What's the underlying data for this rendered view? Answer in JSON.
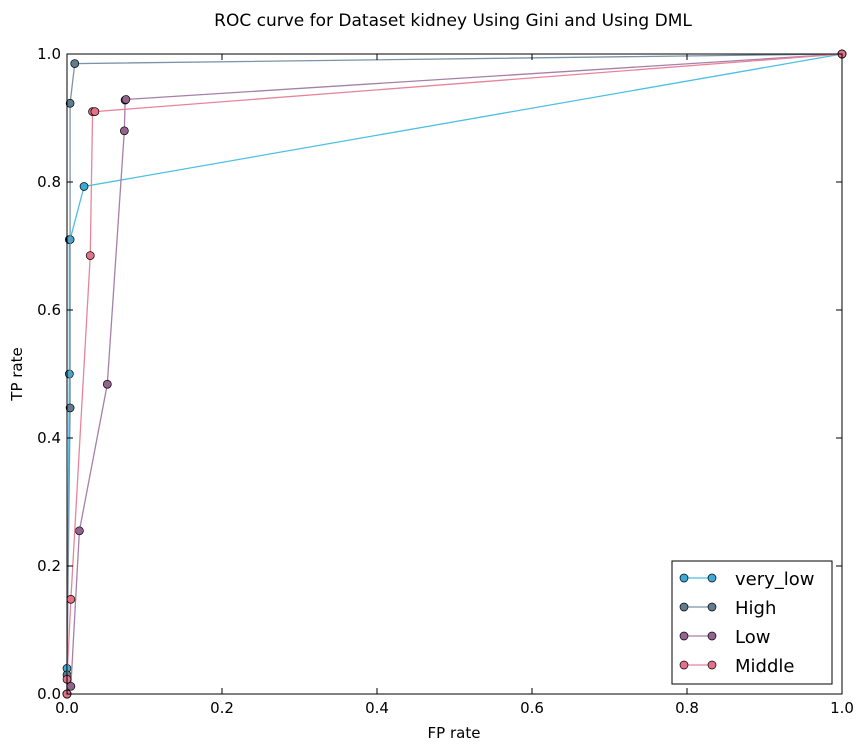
{
  "chart_data": {
    "type": "line",
    "title": "ROC curve for Dataset kidney Using Gini and Using DML",
    "xlabel": "FP rate",
    "ylabel": "TP rate",
    "xlim": [
      0.0,
      1.0
    ],
    "ylim": [
      0.0,
      1.0
    ],
    "xticks": [
      "0.0",
      "0.2",
      "0.4",
      "0.6",
      "0.8",
      "1.0"
    ],
    "yticks": [
      "0.0",
      "0.2",
      "0.4",
      "0.6",
      "0.8",
      "1.0"
    ],
    "grid": false,
    "legend": "bottom-right",
    "series": [
      {
        "name": "very_low",
        "color": "#4dbfe3",
        "marker_color": "#3aaad6",
        "points": [
          [
            0.0,
            0.0
          ],
          [
            0.0,
            0.04
          ],
          [
            0.003,
            0.5
          ],
          [
            0.003,
            0.71
          ],
          [
            0.004,
            0.71
          ],
          [
            0.022,
            0.793
          ],
          [
            1.0,
            1.0
          ]
        ]
      },
      {
        "name": "High",
        "color": "#7b93a8",
        "marker_color": "#607d90",
        "points": [
          [
            0.0,
            0.0
          ],
          [
            0.0,
            0.03
          ],
          [
            0.004,
            0.447
          ],
          [
            0.004,
            0.923
          ],
          [
            0.01,
            0.985
          ],
          [
            1.0,
            1.0
          ]
        ]
      },
      {
        "name": "Low",
        "color": "#a580a8",
        "marker_color": "#94648f",
        "points": [
          [
            0.0,
            0.0
          ],
          [
            0.005,
            0.012
          ],
          [
            0.016,
            0.255
          ],
          [
            0.052,
            0.484
          ],
          [
            0.074,
            0.88
          ],
          [
            0.075,
            0.928
          ],
          [
            0.076,
            0.929
          ],
          [
            1.0,
            1.0
          ]
        ]
      },
      {
        "name": "Middle",
        "color": "#e8849a",
        "marker_color": "#e27288",
        "points": [
          [
            0.0,
            0.0
          ],
          [
            0.0,
            0.023
          ],
          [
            0.005,
            0.148
          ],
          [
            0.03,
            0.685
          ],
          [
            0.033,
            0.91
          ],
          [
            0.036,
            0.91
          ],
          [
            1.0,
            1.0
          ]
        ]
      }
    ]
  }
}
